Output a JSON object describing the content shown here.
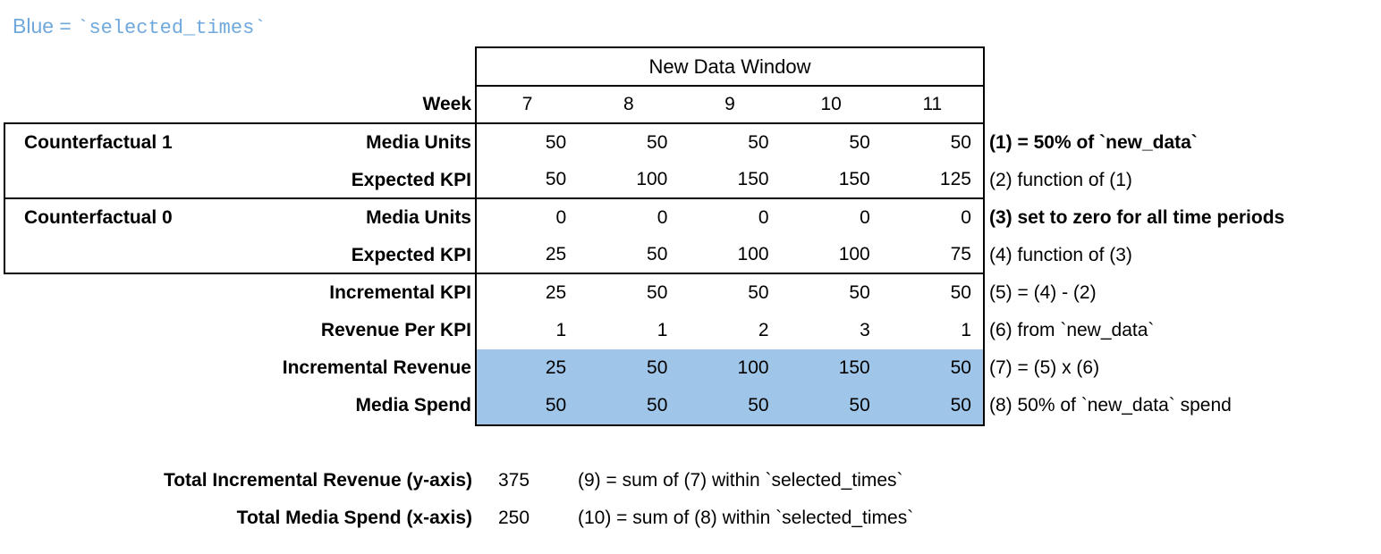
{
  "title": {
    "prefix": "Blue = ",
    "code": "`selected_times`"
  },
  "colors": {
    "accent_blue": "#6FA8DC",
    "highlight_blue": "#9FC5E8",
    "border": "#000000"
  },
  "table": {
    "window_header": "New Data Window",
    "week_label": "Week",
    "weeks": [
      "7",
      "8",
      "9",
      "10",
      "11"
    ],
    "groups": [
      {
        "name": "Counterfactual 1"
      },
      {
        "name": "Counterfactual 0"
      }
    ],
    "rows": [
      {
        "label": "Media Units",
        "values": [
          50,
          50,
          50,
          50,
          50
        ],
        "note": "(1) = 50% of `new_data`",
        "note_bold": true,
        "highlight": false
      },
      {
        "label": "Expected KPI",
        "values": [
          50,
          100,
          150,
          150,
          125
        ],
        "note": "(2) function of (1)",
        "note_bold": false,
        "highlight": false
      },
      {
        "label": "Media Units",
        "values": [
          0,
          0,
          0,
          0,
          0
        ],
        "note": "(3) set to zero for all time periods",
        "note_bold": true,
        "highlight": false
      },
      {
        "label": "Expected KPI",
        "values": [
          25,
          50,
          100,
          100,
          75
        ],
        "note": "(4) function of (3)",
        "note_bold": false,
        "highlight": false
      },
      {
        "label": "Incremental KPI",
        "values": [
          25,
          50,
          50,
          50,
          50
        ],
        "note": "(5) = (4) - (2)",
        "note_bold": false,
        "highlight": false
      },
      {
        "label": "Revenue Per KPI",
        "values": [
          1,
          1,
          2,
          3,
          1
        ],
        "note": "(6) from `new_data`",
        "note_bold": false,
        "highlight": false
      },
      {
        "label": "Incremental Revenue",
        "values": [
          25,
          50,
          100,
          150,
          50
        ],
        "note": "(7) = (5) x (6)",
        "note_bold": false,
        "highlight": true
      },
      {
        "label": "Media Spend",
        "values": [
          50,
          50,
          50,
          50,
          50
        ],
        "note": "(8) 50% of `new_data` spend",
        "note_bold": false,
        "highlight": true
      }
    ]
  },
  "totals": [
    {
      "label": "Total Incremental Revenue (y-axis)",
      "value": "375",
      "note": "(9) = sum of (7) within `selected_times`"
    },
    {
      "label": "Total Media Spend (x-axis)",
      "value": "250",
      "note": "(10) = sum of (8) within `selected_times`"
    }
  ]
}
